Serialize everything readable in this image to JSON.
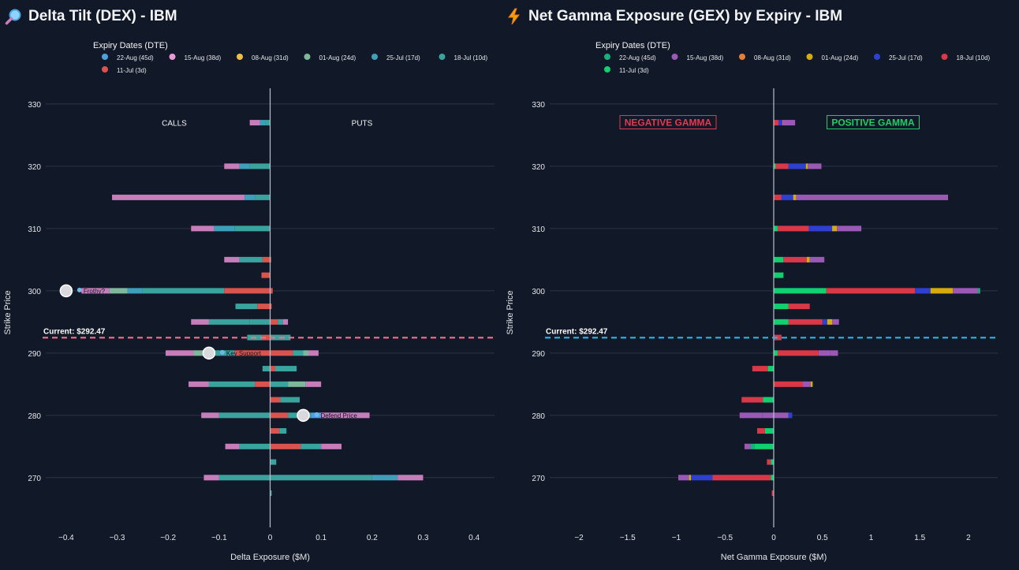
{
  "left": {
    "title": "Delta Tilt (DEX) - IBM",
    "icon": "magnifier-icon"
  },
  "right": {
    "title": "Net Gamma Exposure (GEX) by Expiry - IBM",
    "icon": "lightning-icon"
  },
  "chart_data": [
    {
      "type": "bar",
      "orientation": "horizontal",
      "stacked": true,
      "title": "Delta Tilt (DEX) - IBM",
      "xlabel": "Delta Exposure ($M)",
      "ylabel": "Strike Price",
      "xlim": [
        -0.44,
        0.44
      ],
      "ylim": [
        262,
        331
      ],
      "xticks": [
        -0.4,
        -0.3,
        -0.2,
        -0.1,
        0,
        0.1,
        0.2,
        0.3,
        0.4
      ],
      "xtick_labels": [
        "−0.4",
        "−0.3",
        "−0.2",
        "−0.1",
        "0",
        "0.1",
        "0.2",
        "0.3",
        "0.4"
      ],
      "yticks": [
        270,
        280,
        290,
        300,
        310,
        320,
        330
      ],
      "legend_title": "Expiry Dates (DTE)",
      "legend": [
        {
          "label": "22-Aug (45d)",
          "color": "#4e9fe0"
        },
        {
          "label": "15-Aug (38d)",
          "color": "#e69bd6"
        },
        {
          "label": "08-Aug (31d)",
          "color": "#eebd4a"
        },
        {
          "label": "01-Aug (24d)",
          "color": "#7fb79a"
        },
        {
          "label": "25-Jul (17d)",
          "color": "#3f9fbb"
        },
        {
          "label": "18-Jul (10d)",
          "color": "#3aa39e"
        },
        {
          "label": "11-Jul (3d)",
          "color": "#d9534f"
        }
      ],
      "current_price": 292.47,
      "current_label": "Current: $292.47",
      "current_line_color": "#ff6b8a",
      "side_labels": [
        "CALLS",
        "PUTS"
      ],
      "annotations": [
        {
          "label": "Frothy?",
          "strike": 300,
          "x": -0.4
        },
        {
          "label": "Key Support",
          "strike": 290,
          "x": -0.12
        },
        {
          "label": "Defend Price",
          "strike": 280,
          "x": 0.065
        }
      ],
      "rows": [
        {
          "strike": 327,
          "segments": [
            [
              0,
              -0.01,
              "#3aa39e"
            ],
            [
              -0.01,
              -0.02,
              "#3f9fbb"
            ],
            [
              -0.02,
              -0.04,
              "#c77dba"
            ]
          ]
        },
        {
          "strike": 320,
          "segments": [
            [
              0,
              -0.04,
              "#3aa39e"
            ],
            [
              -0.04,
              -0.06,
              "#3f9fbb"
            ],
            [
              -0.06,
              -0.09,
              "#c77dba"
            ]
          ]
        },
        {
          "strike": 315,
          "segments": [
            [
              0,
              -0.03,
              "#3aa39e"
            ],
            [
              -0.03,
              -0.05,
              "#3f9fbb"
            ],
            [
              -0.05,
              -0.31,
              "#c77dba"
            ]
          ]
        },
        {
          "strike": 310,
          "segments": [
            [
              0,
              -0.07,
              "#3aa39e"
            ],
            [
              -0.07,
              -0.11,
              "#3f9fbb"
            ],
            [
              -0.11,
              -0.155,
              "#c77dba"
            ]
          ]
        },
        {
          "strike": 305,
          "segments": [
            [
              0.002,
              -0.015,
              "#d9534f"
            ],
            [
              -0.015,
              -0.06,
              "#3aa39e"
            ],
            [
              -0.06,
              -0.09,
              "#c77dba"
            ]
          ]
        },
        {
          "strike": 302.5,
          "segments": [
            [
              0,
              -0.017,
              "#d9534f"
            ]
          ]
        },
        {
          "strike": 300,
          "segments": [
            [
              0.005,
              -0.09,
              "#d9534f"
            ],
            [
              -0.09,
              -0.25,
              "#3aa39e"
            ],
            [
              -0.25,
              -0.28,
              "#3f9fbb"
            ],
            [
              -0.28,
              -0.315,
              "#7fb79a"
            ],
            [
              -0.315,
              -0.37,
              "#c77dba"
            ]
          ]
        },
        {
          "strike": 297.5,
          "segments": [
            [
              0.003,
              -0.025,
              "#d9534f"
            ],
            [
              -0.025,
              -0.068,
              "#3aa39e"
            ]
          ]
        },
        {
          "strike": 295,
          "segments": [
            [
              0,
              -0.04,
              "#3aa39e"
            ],
            [
              -0.04,
              -0.12,
              "#3aa39e"
            ],
            [
              -0.12,
              -0.155,
              "#c77dba"
            ],
            [
              0,
              0.015,
              "#d9534f"
            ],
            [
              0.015,
              0.025,
              "#3aa39e"
            ],
            [
              0.025,
              0.035,
              "#c77dba"
            ]
          ]
        },
        {
          "strike": 292.5,
          "segments": [
            [
              0,
              -0.015,
              "#d9534f"
            ],
            [
              -0.015,
              -0.045,
              "#3aa39e"
            ],
            [
              0,
              0.04,
              "#3aa39e"
            ]
          ]
        },
        {
          "strike": 290,
          "segments": [
            [
              0,
              -0.07,
              "#d9534f"
            ],
            [
              -0.07,
              -0.12,
              "#3aa39e"
            ],
            [
              -0.12,
              -0.15,
              "#7fb79a"
            ],
            [
              -0.15,
              -0.205,
              "#c77dba"
            ],
            [
              0,
              0.045,
              "#d9534f"
            ],
            [
              0.045,
              0.065,
              "#3aa39e"
            ],
            [
              0.065,
              0.075,
              "#7fb79a"
            ],
            [
              0.075,
              0.095,
              "#c77dba"
            ]
          ]
        },
        {
          "strike": 287.5,
          "segments": [
            [
              0,
              -0.015,
              "#3aa39e"
            ],
            [
              0,
              0.01,
              "#d9534f"
            ],
            [
              0.01,
              0.052,
              "#3aa39e"
            ]
          ]
        },
        {
          "strike": 285,
          "segments": [
            [
              0,
              -0.03,
              "#d9534f"
            ],
            [
              -0.03,
              -0.12,
              "#3aa39e"
            ],
            [
              -0.12,
              -0.16,
              "#c77dba"
            ],
            [
              0,
              0.035,
              "#3aa39e"
            ],
            [
              0.035,
              0.07,
              "#7fb79a"
            ],
            [
              0.07,
              0.1,
              "#c77dba"
            ]
          ]
        },
        {
          "strike": 282.5,
          "segments": [
            [
              0,
              0.02,
              "#d9534f"
            ],
            [
              0.02,
              0.058,
              "#3aa39e"
            ]
          ]
        },
        {
          "strike": 280,
          "segments": [
            [
              0,
              -0.1,
              "#3aa39e"
            ],
            [
              -0.1,
              -0.135,
              "#c77dba"
            ],
            [
              0,
              0.035,
              "#d9534f"
            ],
            [
              0.035,
              0.08,
              "#3aa39e"
            ],
            [
              0.08,
              0.1,
              "#4e9fe0"
            ],
            [
              0.1,
              0.195,
              "#c77dba"
            ]
          ]
        },
        {
          "strike": 277.5,
          "segments": [
            [
              0,
              0.018,
              "#d9534f"
            ],
            [
              0.018,
              0.032,
              "#3aa39e"
            ]
          ]
        },
        {
          "strike": 275,
          "segments": [
            [
              0,
              -0.06,
              "#3aa39e"
            ],
            [
              -0.06,
              -0.088,
              "#c77dba"
            ],
            [
              0,
              0.06,
              "#d9534f"
            ],
            [
              0.06,
              0.1,
              "#3aa39e"
            ],
            [
              0.1,
              0.14,
              "#c77dba"
            ]
          ]
        },
        {
          "strike": 272.5,
          "segments": [
            [
              0,
              0.012,
              "#3aa39e"
            ]
          ]
        },
        {
          "strike": 270,
          "segments": [
            [
              0,
              -0.1,
              "#3aa39e"
            ],
            [
              -0.1,
              -0.13,
              "#c77dba"
            ],
            [
              0,
              0.2,
              "#3aa39e"
            ],
            [
              0.2,
              0.25,
              "#3f9fbb"
            ],
            [
              0.25,
              0.3,
              "#c77dba"
            ]
          ]
        },
        {
          "strike": 267.5,
          "segments": [
            [
              0,
              0.003,
              "#3aa39e"
            ]
          ]
        }
      ]
    },
    {
      "type": "bar",
      "orientation": "horizontal",
      "stacked": true,
      "title": "Net Gamma Exposure (GEX) by Expiry - IBM",
      "xlabel": "Net Gamma Exposure ($M)",
      "ylabel": "Strike Price",
      "xlim": [
        -2.3,
        2.3
      ],
      "ylim": [
        262,
        331
      ],
      "xticks": [
        -2,
        -1.5,
        -1,
        -0.5,
        0,
        0.5,
        1,
        1.5,
        2
      ],
      "xtick_labels": [
        "−2",
        "−1.5",
        "−1",
        "−0.5",
        "0",
        "0.5",
        "1",
        "1.5",
        "2"
      ],
      "yticks": [
        270,
        280,
        290,
        300,
        310,
        320,
        330
      ],
      "legend_title": "Expiry Dates (DTE)",
      "legend": [
        {
          "label": "22-Aug (45d)",
          "color": "#1aaf7f"
        },
        {
          "label": "15-Aug (38d)",
          "color": "#9b59b6"
        },
        {
          "label": "08-Aug (31d)",
          "color": "#e67e33"
        },
        {
          "label": "01-Aug (24d)",
          "color": "#d4ac0d"
        },
        {
          "label": "25-Jul (17d)",
          "color": "#2f3fd0"
        },
        {
          "label": "18-Jul (10d)",
          "color": "#d93848"
        },
        {
          "label": "11-Jul (3d)",
          "color": "#10d070"
        }
      ],
      "current_price": 292.47,
      "current_label": "Current: $292.47",
      "current_line_color": "#22b8ee",
      "side_labels": [
        "NEGATIVE GAMMA",
        "POSITIVE GAMMA"
      ],
      "side_label_colors": [
        "#e53950",
        "#22cc66"
      ],
      "rows": [
        {
          "strike": 327,
          "segments": [
            [
              0,
              0.05,
              "#d93848"
            ],
            [
              0.05,
              0.09,
              "#2f3fd0"
            ],
            [
              0.09,
              0.1,
              "#e67e33"
            ],
            [
              0.1,
              0.22,
              "#9b59b6"
            ]
          ]
        },
        {
          "strike": 320,
          "segments": [
            [
              0,
              0.02,
              "#10d070"
            ],
            [
              0.02,
              0.15,
              "#d93848"
            ],
            [
              0.15,
              0.33,
              "#2f3fd0"
            ],
            [
              0.33,
              0.35,
              "#d4ac0d"
            ],
            [
              0.35,
              0.49,
              "#9b59b6"
            ]
          ]
        },
        {
          "strike": 315,
          "segments": [
            [
              0,
              0.08,
              "#d93848"
            ],
            [
              0.08,
              0.2,
              "#2f3fd0"
            ],
            [
              0.2,
              0.23,
              "#d4ac0d"
            ],
            [
              0.23,
              1.79,
              "#9b59b6"
            ]
          ]
        },
        {
          "strike": 310,
          "segments": [
            [
              0,
              0.04,
              "#10d070"
            ],
            [
              0.04,
              0.36,
              "#d93848"
            ],
            [
              0.36,
              0.6,
              "#2f3fd0"
            ],
            [
              0.6,
              0.65,
              "#d4ac0d"
            ],
            [
              0.65,
              0.9,
              "#9b59b6"
            ]
          ]
        },
        {
          "strike": 305,
          "segments": [
            [
              0,
              0.1,
              "#10d070"
            ],
            [
              0.1,
              0.34,
              "#d93848"
            ],
            [
              0.34,
              0.37,
              "#d4ac0d"
            ],
            [
              0.37,
              0.52,
              "#9b59b6"
            ]
          ]
        },
        {
          "strike": 302.5,
          "segments": [
            [
              0,
              0.1,
              "#10d070"
            ]
          ]
        },
        {
          "strike": 300,
          "segments": [
            [
              0,
              0.54,
              "#10d070"
            ],
            [
              0.54,
              1.45,
              "#d93848"
            ],
            [
              1.45,
              1.61,
              "#2f3fd0"
            ],
            [
              1.61,
              1.84,
              "#d4ac0d"
            ],
            [
              1.84,
              2.1,
              "#9b59b6"
            ],
            [
              2.1,
              2.12,
              "#1aaf7f"
            ]
          ]
        },
        {
          "strike": 297.5,
          "segments": [
            [
              0,
              0.15,
              "#10d070"
            ],
            [
              0.15,
              0.37,
              "#d93848"
            ]
          ]
        },
        {
          "strike": 295,
          "segments": [
            [
              0,
              0.15,
              "#10d070"
            ],
            [
              0.15,
              0.5,
              "#d93848"
            ],
            [
              0.5,
              0.55,
              "#2f3fd0"
            ],
            [
              0.55,
              0.6,
              "#d4ac0d"
            ],
            [
              0.6,
              0.67,
              "#9b59b6"
            ]
          ]
        },
        {
          "strike": 292.5,
          "segments": [
            [
              0,
              0.08,
              "#d93848"
            ]
          ]
        },
        {
          "strike": 290,
          "segments": [
            [
              0,
              0.04,
              "#10d070"
            ],
            [
              0.04,
              0.46,
              "#d93848"
            ],
            [
              0.46,
              0.58,
              "#9b59b6"
            ],
            [
              0.58,
              0.66,
              "#9b59b6"
            ]
          ]
        },
        {
          "strike": 287.5,
          "segments": [
            [
              0,
              -0.06,
              "#10d070"
            ],
            [
              -0.06,
              -0.22,
              "#d93848"
            ]
          ]
        },
        {
          "strike": 285,
          "segments": [
            [
              0,
              0.3,
              "#d93848"
            ],
            [
              0.3,
              0.38,
              "#9b59b6"
            ],
            [
              0.38,
              0.4,
              "#d4ac0d"
            ]
          ]
        },
        {
          "strike": 282.5,
          "segments": [
            [
              0,
              -0.11,
              "#10d070"
            ],
            [
              -0.11,
              -0.33,
              "#d93848"
            ]
          ]
        },
        {
          "strike": 280,
          "segments": [
            [
              0,
              -0.12,
              "#9b59b6"
            ],
            [
              -0.12,
              -0.35,
              "#9b59b6"
            ],
            [
              0,
              0.15,
              "#9b59b6"
            ],
            [
              0.15,
              0.19,
              "#2f3fd0"
            ]
          ]
        },
        {
          "strike": 277.5,
          "segments": [
            [
              0,
              -0.09,
              "#10d070"
            ],
            [
              -0.09,
              -0.17,
              "#d93848"
            ]
          ]
        },
        {
          "strike": 275,
          "segments": [
            [
              0,
              -0.2,
              "#10d070"
            ],
            [
              -0.2,
              -0.24,
              "#1aaf7f"
            ],
            [
              -0.24,
              -0.3,
              "#9b59b6"
            ]
          ]
        },
        {
          "strike": 272.5,
          "segments": [
            [
              0,
              -0.03,
              "#10d070"
            ],
            [
              -0.03,
              -0.07,
              "#d93848"
            ]
          ]
        },
        {
          "strike": 270,
          "segments": [
            [
              0,
              -0.03,
              "#10d070"
            ],
            [
              -0.03,
              -0.63,
              "#d93848"
            ],
            [
              -0.63,
              -0.85,
              "#2f3fd0"
            ],
            [
              -0.85,
              -0.87,
              "#d4ac0d"
            ],
            [
              -0.87,
              -0.98,
              "#9b59b6"
            ]
          ]
        },
        {
          "strike": 267.5,
          "segments": [
            [
              0,
              -0.02,
              "#d93848"
            ]
          ]
        }
      ]
    }
  ]
}
